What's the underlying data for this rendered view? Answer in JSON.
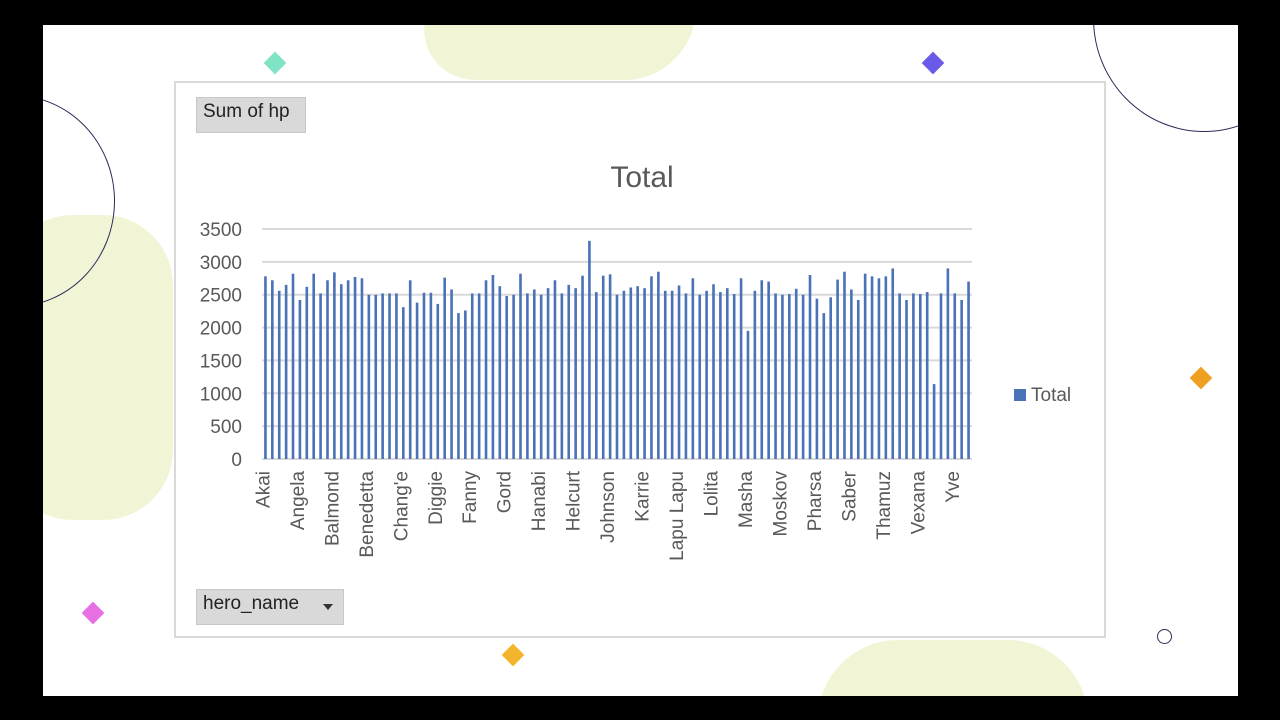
{
  "colors": {
    "bar": "#4a72b7",
    "grid": "#d9d9d9",
    "text": "#595959",
    "slide_bg": "#ffffff",
    "frame": "#000000"
  },
  "pivot": {
    "value_field_label": "Sum of hp",
    "row_field_label": "hero_name",
    "row_field_icon": "chevron-down-icon"
  },
  "chart_data": {
    "type": "bar",
    "title": "Total",
    "legend": {
      "position": "right",
      "entries": [
        "Total"
      ]
    },
    "grid": true,
    "ylim": [
      0,
      3500
    ],
    "yticks": [
      0,
      500,
      1000,
      1500,
      2000,
      2500,
      3000,
      3500
    ],
    "visible_category_labels": [
      "Akai",
      "Angela",
      "Balmond",
      "Benedetta",
      "Chang'e",
      "Diggie",
      "Fanny",
      "Gord",
      "Hanabi",
      "Helcurt",
      "Johnson",
      "Karrie",
      "Lapu Lapu",
      "Lolita",
      "Masha",
      "Moskov",
      "Pharsa",
      "Saber",
      "Thamuz",
      "Vexana",
      "Yve"
    ],
    "series": [
      {
        "name": "Total",
        "values": [
          2780,
          2720,
          2560,
          2650,
          2820,
          2420,
          2620,
          2820,
          2520,
          2720,
          2840,
          2660,
          2720,
          2770,
          2750,
          2500,
          2500,
          2520,
          2520,
          2520,
          2310,
          2720,
          2380,
          2530,
          2530,
          2360,
          2760,
          2580,
          2220,
          2260,
          2520,
          2520,
          2720,
          2800,
          2630,
          2480,
          2500,
          2820,
          2520,
          2580,
          2500,
          2600,
          2720,
          2520,
          2650,
          2600,
          2790,
          3320,
          2540,
          2790,
          2810,
          2500,
          2560,
          2610,
          2630,
          2600,
          2780,
          2850,
          2560,
          2560,
          2640,
          2520,
          2750,
          2500,
          2560,
          2660,
          2540,
          2600,
          2510,
          2750,
          1950,
          2560,
          2720,
          2700,
          2520,
          2500,
          2510,
          2590,
          2500,
          2800,
          2440,
          2220,
          2460,
          2730,
          2850,
          2580,
          2420,
          2820,
          2780,
          2750,
          2780,
          2900,
          2520,
          2420,
          2520,
          2510,
          2540,
          1140,
          2520,
          2900,
          2520,
          2420,
          2700
        ]
      }
    ]
  }
}
